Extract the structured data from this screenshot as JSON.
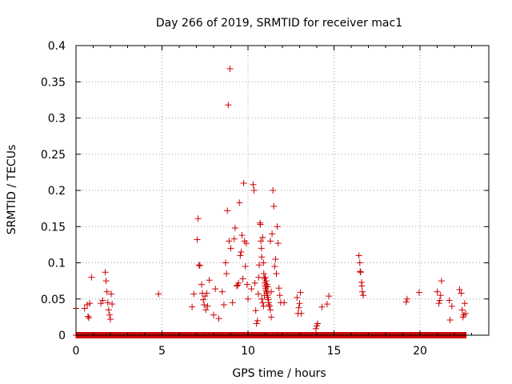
{
  "chart_data": {
    "type": "scatter",
    "title": "Day 266 of 2019, SRMTID for receiver mac1",
    "xlabel": "GPS time / hours",
    "ylabel": "SRMTID / TECUs",
    "xlim": [
      0,
      24
    ],
    "ylim": [
      0,
      0.4
    ],
    "xticks": [
      0,
      5,
      10,
      15,
      20
    ],
    "xtick_labels": [
      "0",
      "5",
      "10",
      "15",
      "20"
    ],
    "yticks": [
      0,
      0.05,
      0.1,
      0.15,
      0.2,
      0.25,
      0.3,
      0.35,
      0.4
    ],
    "ytick_labels": [
      "0",
      "0.05",
      "0.1",
      "0.15",
      "0.2",
      "0.25",
      "0.3",
      "0.35",
      "0.4"
    ],
    "grid": true,
    "marker": "+",
    "color": "#cc0000",
    "baseline": {
      "y": 0,
      "x_start": 0,
      "x_end": 22.7,
      "step": 0.04
    },
    "series": [
      {
        "name": "SRMTID",
        "points": [
          [
            0.0,
            0.037
          ],
          [
            0.5,
            0.037
          ],
          [
            0.65,
            0.042
          ],
          [
            0.7,
            0.026
          ],
          [
            0.75,
            0.024
          ],
          [
            0.8,
            0.044
          ],
          [
            0.9,
            0.08
          ],
          [
            1.45,
            0.044
          ],
          [
            1.55,
            0.048
          ],
          [
            1.7,
            0.087
          ],
          [
            1.75,
            0.075
          ],
          [
            1.8,
            0.06
          ],
          [
            1.85,
            0.045
          ],
          [
            1.9,
            0.035
          ],
          [
            1.95,
            0.028
          ],
          [
            2.0,
            0.022
          ],
          [
            2.05,
            0.057
          ],
          [
            2.1,
            0.043
          ],
          [
            4.8,
            0.057
          ],
          [
            6.75,
            0.039
          ],
          [
            6.85,
            0.057
          ],
          [
            7.05,
            0.132
          ],
          [
            7.1,
            0.161
          ],
          [
            7.15,
            0.097
          ],
          [
            7.2,
            0.096
          ],
          [
            7.3,
            0.07
          ],
          [
            7.35,
            0.058
          ],
          [
            7.4,
            0.049
          ],
          [
            7.45,
            0.042
          ],
          [
            7.5,
            0.054
          ],
          [
            7.55,
            0.035
          ],
          [
            7.6,
            0.058
          ],
          [
            7.65,
            0.04
          ],
          [
            7.75,
            0.076
          ],
          [
            8.0,
            0.028
          ],
          [
            8.1,
            0.064
          ],
          [
            8.3,
            0.023
          ],
          [
            8.5,
            0.06
          ],
          [
            8.6,
            0.042
          ],
          [
            8.7,
            0.1
          ],
          [
            8.75,
            0.085
          ],
          [
            8.8,
            0.172
          ],
          [
            8.85,
            0.318
          ],
          [
            8.9,
            0.13
          ],
          [
            8.95,
            0.368
          ],
          [
            9.0,
            0.12
          ],
          [
            9.1,
            0.045
          ],
          [
            9.2,
            0.133
          ],
          [
            9.25,
            0.148
          ],
          [
            9.35,
            0.068
          ],
          [
            9.4,
            0.069
          ],
          [
            9.45,
            0.072
          ],
          [
            9.5,
            0.183
          ],
          [
            9.55,
            0.11
          ],
          [
            9.6,
            0.115
          ],
          [
            9.65,
            0.138
          ],
          [
            9.7,
            0.078
          ],
          [
            9.75,
            0.21
          ],
          [
            9.8,
            0.13
          ],
          [
            9.85,
            0.095
          ],
          [
            9.9,
            0.127
          ],
          [
            9.95,
            0.07
          ],
          [
            10.0,
            0.05
          ],
          [
            10.2,
            0.064
          ],
          [
            10.3,
            0.208
          ],
          [
            10.35,
            0.2
          ],
          [
            10.4,
            0.072
          ],
          [
            10.45,
            0.034
          ],
          [
            10.5,
            0.016
          ],
          [
            10.55,
            0.02
          ],
          [
            10.6,
            0.057
          ],
          [
            10.62,
            0.08
          ],
          [
            10.65,
            0.097
          ],
          [
            10.7,
            0.155
          ],
          [
            10.72,
            0.153
          ],
          [
            10.75,
            0.13
          ],
          [
            10.78,
            0.12
          ],
          [
            10.8,
            0.108
          ],
          [
            10.85,
            0.135
          ],
          [
            10.9,
            0.1
          ],
          [
            10.92,
            0.085
          ],
          [
            10.95,
            0.078
          ],
          [
            10.98,
            0.072
          ],
          [
            11.0,
            0.068
          ],
          [
            11.02,
            0.065
          ],
          [
            11.05,
            0.062
          ],
          [
            11.08,
            0.06
          ],
          [
            11.1,
            0.058
          ],
          [
            11.12,
            0.055
          ],
          [
            11.15,
            0.052
          ],
          [
            11.18,
            0.049
          ],
          [
            11.2,
            0.045
          ],
          [
            11.22,
            0.042
          ],
          [
            11.25,
            0.04
          ],
          [
            11.3,
            0.035
          ],
          [
            11.35,
            0.025
          ],
          [
            10.8,
            0.05
          ],
          [
            10.85,
            0.045
          ],
          [
            10.9,
            0.04
          ],
          [
            10.95,
            0.055
          ],
          [
            11.0,
            0.08
          ],
          [
            11.05,
            0.075
          ],
          [
            11.1,
            0.07
          ],
          [
            11.15,
            0.067
          ],
          [
            11.35,
            0.06
          ],
          [
            11.4,
            0.14
          ],
          [
            11.45,
            0.2
          ],
          [
            11.5,
            0.178
          ],
          [
            11.55,
            0.095
          ],
          [
            11.6,
            0.105
          ],
          [
            11.65,
            0.085
          ],
          [
            11.7,
            0.15
          ],
          [
            11.75,
            0.127
          ],
          [
            11.8,
            0.065
          ],
          [
            11.85,
            0.055
          ],
          [
            11.9,
            0.045
          ],
          [
            12.1,
            0.045
          ],
          [
            11.3,
            0.13
          ],
          [
            12.85,
            0.052
          ],
          [
            12.9,
            0.03
          ],
          [
            12.95,
            0.038
          ],
          [
            13.0,
            0.044
          ],
          [
            13.05,
            0.059
          ],
          [
            13.1,
            0.03
          ],
          [
            13.95,
            0.009
          ],
          [
            14.0,
            0.013
          ],
          [
            14.05,
            0.016
          ],
          [
            14.3,
            0.039
          ],
          [
            14.6,
            0.043
          ],
          [
            14.7,
            0.054
          ],
          [
            16.45,
            0.11
          ],
          [
            16.5,
            0.1
          ],
          [
            16.52,
            0.088
          ],
          [
            16.55,
            0.087
          ],
          [
            16.6,
            0.073
          ],
          [
            16.62,
            0.068
          ],
          [
            16.65,
            0.06
          ],
          [
            16.7,
            0.055
          ],
          [
            19.2,
            0.046
          ],
          [
            19.25,
            0.05
          ],
          [
            19.95,
            0.059
          ],
          [
            21.0,
            0.06
          ],
          [
            21.1,
            0.044
          ],
          [
            21.15,
            0.048
          ],
          [
            21.2,
            0.055
          ],
          [
            21.25,
            0.075
          ],
          [
            21.7,
            0.048
          ],
          [
            21.75,
            0.021
          ],
          [
            21.85,
            0.04
          ],
          [
            22.3,
            0.063
          ],
          [
            22.4,
            0.058
          ],
          [
            22.45,
            0.035
          ],
          [
            22.5,
            0.025
          ],
          [
            22.55,
            0.028
          ],
          [
            22.6,
            0.044
          ],
          [
            22.65,
            0.03
          ]
        ]
      }
    ]
  }
}
